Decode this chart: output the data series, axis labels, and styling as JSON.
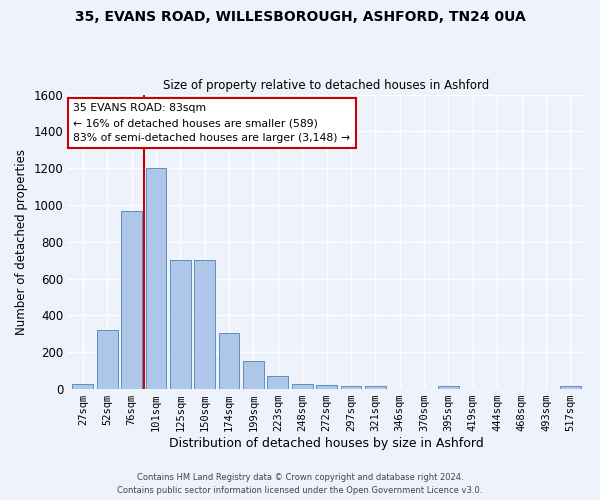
{
  "title_line1": "35, EVANS ROAD, WILLESBOROUGH, ASHFORD, TN24 0UA",
  "title_line2": "Size of property relative to detached houses in Ashford",
  "xlabel": "Distribution of detached houses by size in Ashford",
  "ylabel": "Number of detached properties",
  "bar_categories": [
    "27sqm",
    "52sqm",
    "76sqm",
    "101sqm",
    "125sqm",
    "150sqm",
    "174sqm",
    "199sqm",
    "223sqm",
    "248sqm",
    "272sqm",
    "297sqm",
    "321sqm",
    "346sqm",
    "370sqm",
    "395sqm",
    "419sqm",
    "444sqm",
    "468sqm",
    "493sqm",
    "517sqm"
  ],
  "bar_values": [
    30,
    320,
    970,
    1200,
    700,
    700,
    305,
    155,
    70,
    30,
    20,
    15,
    15,
    0,
    0,
    15,
    0,
    0,
    0,
    0,
    15
  ],
  "bar_color": "#aec6e8",
  "bar_edge_color": "#5b8fc9",
  "background_color": "#eef2fa",
  "grid_color": "#ffffff",
  "annotation_text": "35 EVANS ROAD: 83sqm\n← 16% of detached houses are smaller (589)\n83% of semi-detached houses are larger (3,148) →",
  "annotation_box_color": "#ffffff",
  "annotation_box_edge_color": "#cc0000",
  "vline_color": "#cc0000",
  "vline_x": 2.5,
  "ylim": [
    0,
    1600
  ],
  "yticks": [
    0,
    200,
    400,
    600,
    800,
    1000,
    1200,
    1400,
    1600
  ],
  "footer_line1": "Contains HM Land Registry data © Crown copyright and database right 2024.",
  "footer_line2": "Contains public sector information licensed under the Open Government Licence v3.0."
}
